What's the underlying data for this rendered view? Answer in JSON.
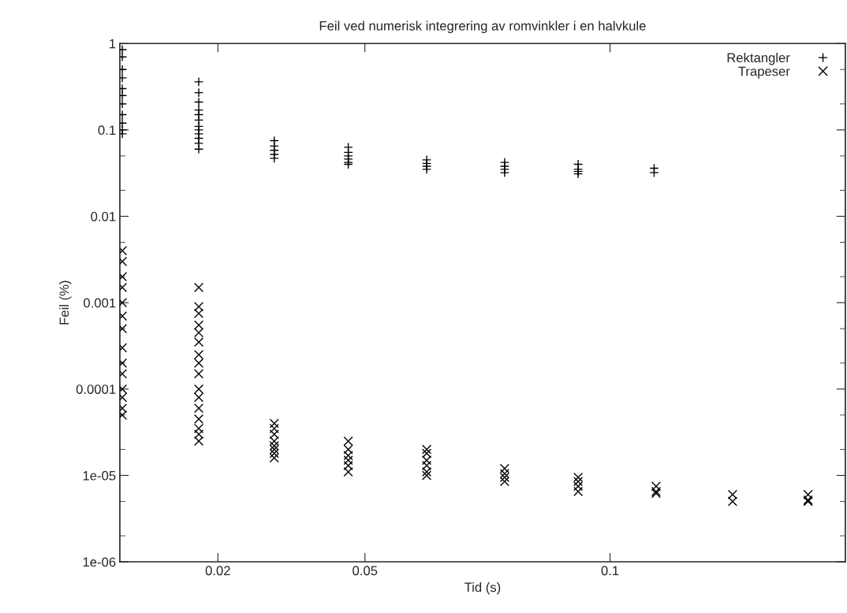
{
  "chart_data": {
    "type": "scatter",
    "title": "Feil ved numerisk integrering av romvinkler i en halvkule",
    "xlabel": "Tid (s)",
    "ylabel": "Feil (%)",
    "log": "y",
    "grid": false,
    "legend": "top right",
    "xlim": [
      0,
      0.148
    ],
    "xticks": [
      0.02,
      0.05,
      0.1
    ],
    "ylim": [
      1e-06,
      1
    ],
    "yticks": [
      {
        "value": 1e-06,
        "label": "1e-06"
      },
      {
        "value": 1e-05,
        "label": "1e-05"
      },
      {
        "value": 0.0001,
        "label": "0.0001"
      },
      {
        "value": 0.001,
        "label": "0.001"
      },
      {
        "value": 0.01,
        "label": "0.01"
      },
      {
        "value": 0.1,
        "label": "0.1"
      },
      {
        "value": 1,
        "label": "1"
      }
    ],
    "series": [
      {
        "name": "Rektangler",
        "color": "#000000",
        "marker": "plus",
        "x": [
          0.0005,
          0.0005,
          0.0005,
          0.0005,
          0.0005,
          0.0005,
          0.0005,
          0.0005,
          0.0005,
          0.0005,
          0.0005,
          0.0161,
          0.0161,
          0.0161,
          0.0161,
          0.0161,
          0.0161,
          0.0161,
          0.0161,
          0.0161,
          0.0161,
          0.0161,
          0.0161,
          0.0315,
          0.0315,
          0.0315,
          0.0315,
          0.0315,
          0.0466,
          0.0466,
          0.0466,
          0.0466,
          0.0466,
          0.0466,
          0.0626,
          0.0626,
          0.0626,
          0.0626,
          0.0785,
          0.0785,
          0.0785,
          0.0785,
          0.0935,
          0.0935,
          0.0935,
          0.0935,
          0.109,
          0.109
        ],
        "values": [
          0.85,
          0.7,
          0.5,
          0.4,
          0.3,
          0.25,
          0.2,
          0.15,
          0.12,
          0.1,
          0.09,
          0.36,
          0.27,
          0.21,
          0.17,
          0.15,
          0.13,
          0.11,
          0.1,
          0.09,
          0.08,
          0.07,
          0.06,
          0.075,
          0.065,
          0.058,
          0.052,
          0.047,
          0.063,
          0.055,
          0.05,
          0.046,
          0.042,
          0.04,
          0.045,
          0.041,
          0.038,
          0.035,
          0.042,
          0.038,
          0.035,
          0.032,
          0.04,
          0.035,
          0.033,
          0.031,
          0.036,
          0.032
        ]
      },
      {
        "name": "Trapeser",
        "color": "#000000",
        "marker": "cross",
        "x": [
          0.0005,
          0.0005,
          0.0005,
          0.0005,
          0.0005,
          0.0005,
          0.0005,
          0.0005,
          0.0005,
          0.0005,
          0.0005,
          0.0005,
          0.0005,
          0.0005,
          0.0161,
          0.0161,
          0.0161,
          0.0161,
          0.0161,
          0.0161,
          0.0161,
          0.0161,
          0.0161,
          0.0161,
          0.0161,
          0.0161,
          0.0161,
          0.0161,
          0.0161,
          0.0161,
          0.0315,
          0.0315,
          0.0315,
          0.0315,
          0.0315,
          0.0315,
          0.0315,
          0.0315,
          0.0466,
          0.0466,
          0.0466,
          0.0466,
          0.0466,
          0.0466,
          0.0626,
          0.0626,
          0.0626,
          0.0626,
          0.0626,
          0.0626,
          0.0785,
          0.0785,
          0.0785,
          0.0785,
          0.0935,
          0.0935,
          0.0935,
          0.0935,
          0.1094,
          0.1094,
          0.1094,
          0.125,
          0.125,
          0.1404,
          0.1404,
          0.1404
        ],
        "values": [
          0.004,
          0.003,
          0.002,
          0.0015,
          0.001,
          0.0007,
          0.0005,
          0.0003,
          0.0002,
          0.00015,
          0.0001,
          8e-05,
          6e-05,
          5e-05,
          0.0015,
          0.0009,
          0.00075,
          0.00055,
          0.00045,
          0.00035,
          0.00025,
          0.0002,
          0.00015,
          0.0001,
          8e-05,
          6e-05,
          4.5e-05,
          3.5e-05,
          3e-05,
          2.5e-05,
          4e-05,
          3.5e-05,
          3e-05,
          2.5e-05,
          2.2e-05,
          2e-05,
          1.8e-05,
          1.6e-05,
          2.5e-05,
          2e-05,
          1.7e-05,
          1.5e-05,
          1.3e-05,
          1.1e-05,
          2e-05,
          1.8e-05,
          1.5e-05,
          1.3e-05,
          1.1e-05,
          1e-05,
          1.2e-05,
          1.05e-05,
          9.5e-06,
          8.5e-06,
          9.5e-06,
          8.5e-06,
          7.5e-06,
          6.5e-06,
          7.5e-06,
          6.5e-06,
          6.2e-06,
          6e-06,
          5e-06,
          6e-06,
          5.2e-06,
          5e-06
        ]
      }
    ]
  }
}
